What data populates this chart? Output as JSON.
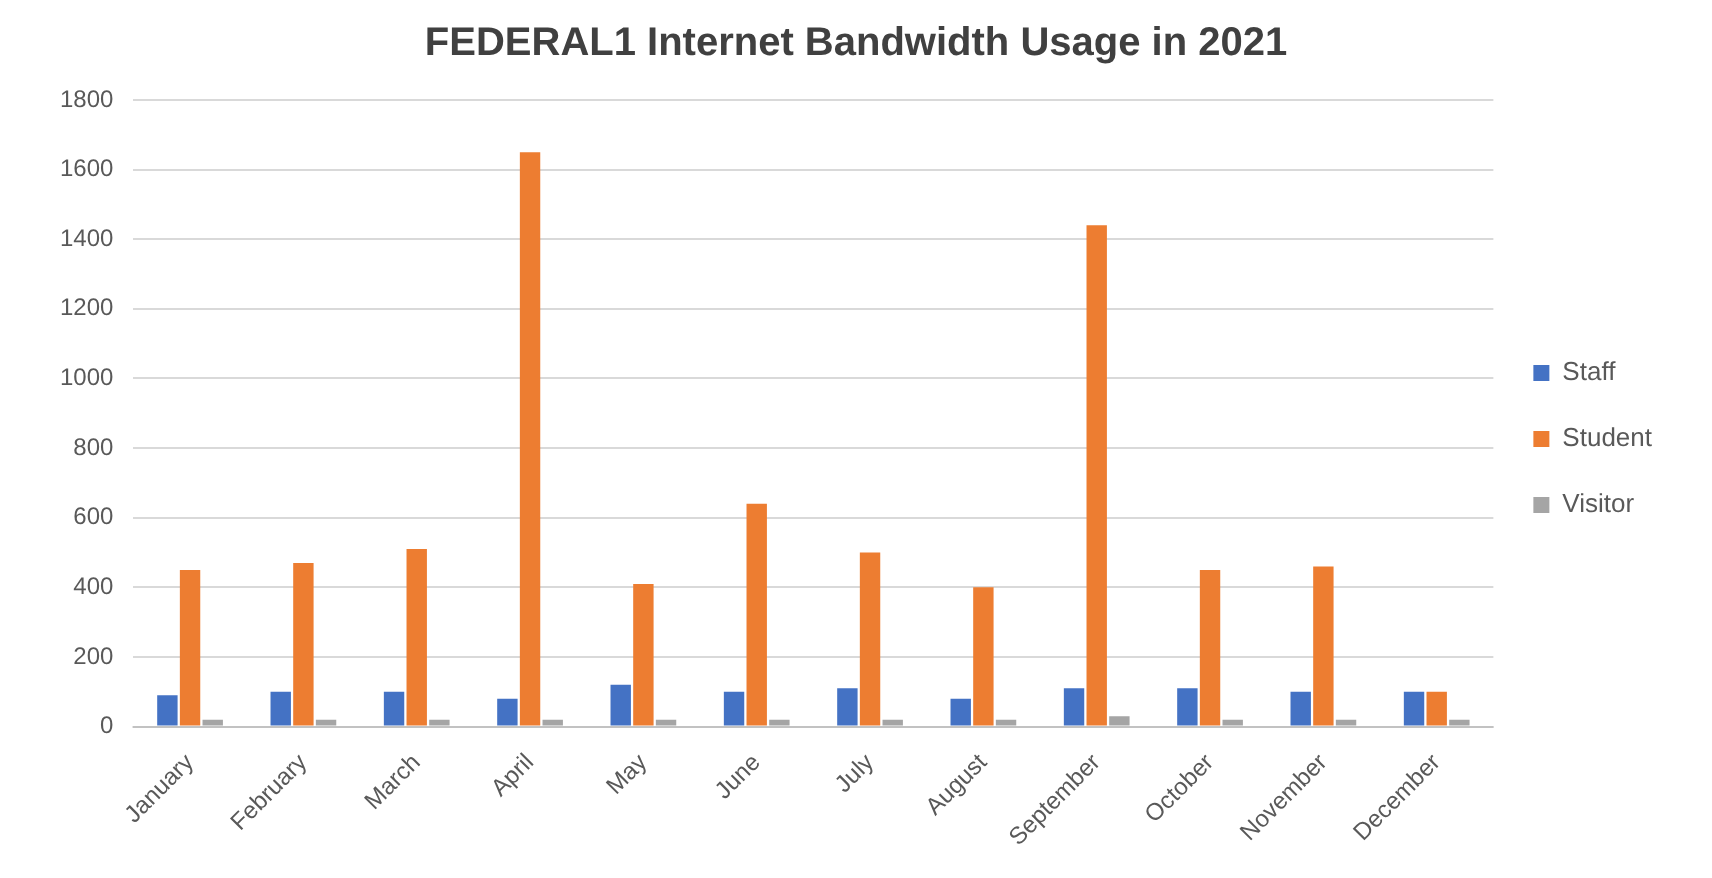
{
  "chart_data": {
    "type": "bar",
    "title": "FEDERAL1 Internet Bandwidth Usage in 2021",
    "categories": [
      "January",
      "February",
      "March",
      "April",
      "May",
      "June",
      "July",
      "August",
      "September",
      "October",
      "November",
      "December"
    ],
    "series": [
      {
        "name": "Staff",
        "color": "#4472c4",
        "values": [
          90,
          100,
          100,
          80,
          120,
          100,
          110,
          80,
          110,
          110,
          100,
          100
        ]
      },
      {
        "name": "Student",
        "color": "#ed7d31",
        "values": [
          450,
          470,
          510,
          1650,
          410,
          640,
          500,
          400,
          1440,
          450,
          460,
          100
        ]
      },
      {
        "name": "Visitor",
        "color": "#a5a5a5",
        "values": [
          20,
          20,
          20,
          20,
          20,
          20,
          20,
          20,
          30,
          20,
          20,
          20
        ]
      }
    ],
    "ylim": [
      0,
      1800
    ],
    "yticks": [
      0,
      200,
      400,
      600,
      800,
      1000,
      1200,
      1400,
      1600,
      1800
    ],
    "grid": "y",
    "legend": "right"
  }
}
